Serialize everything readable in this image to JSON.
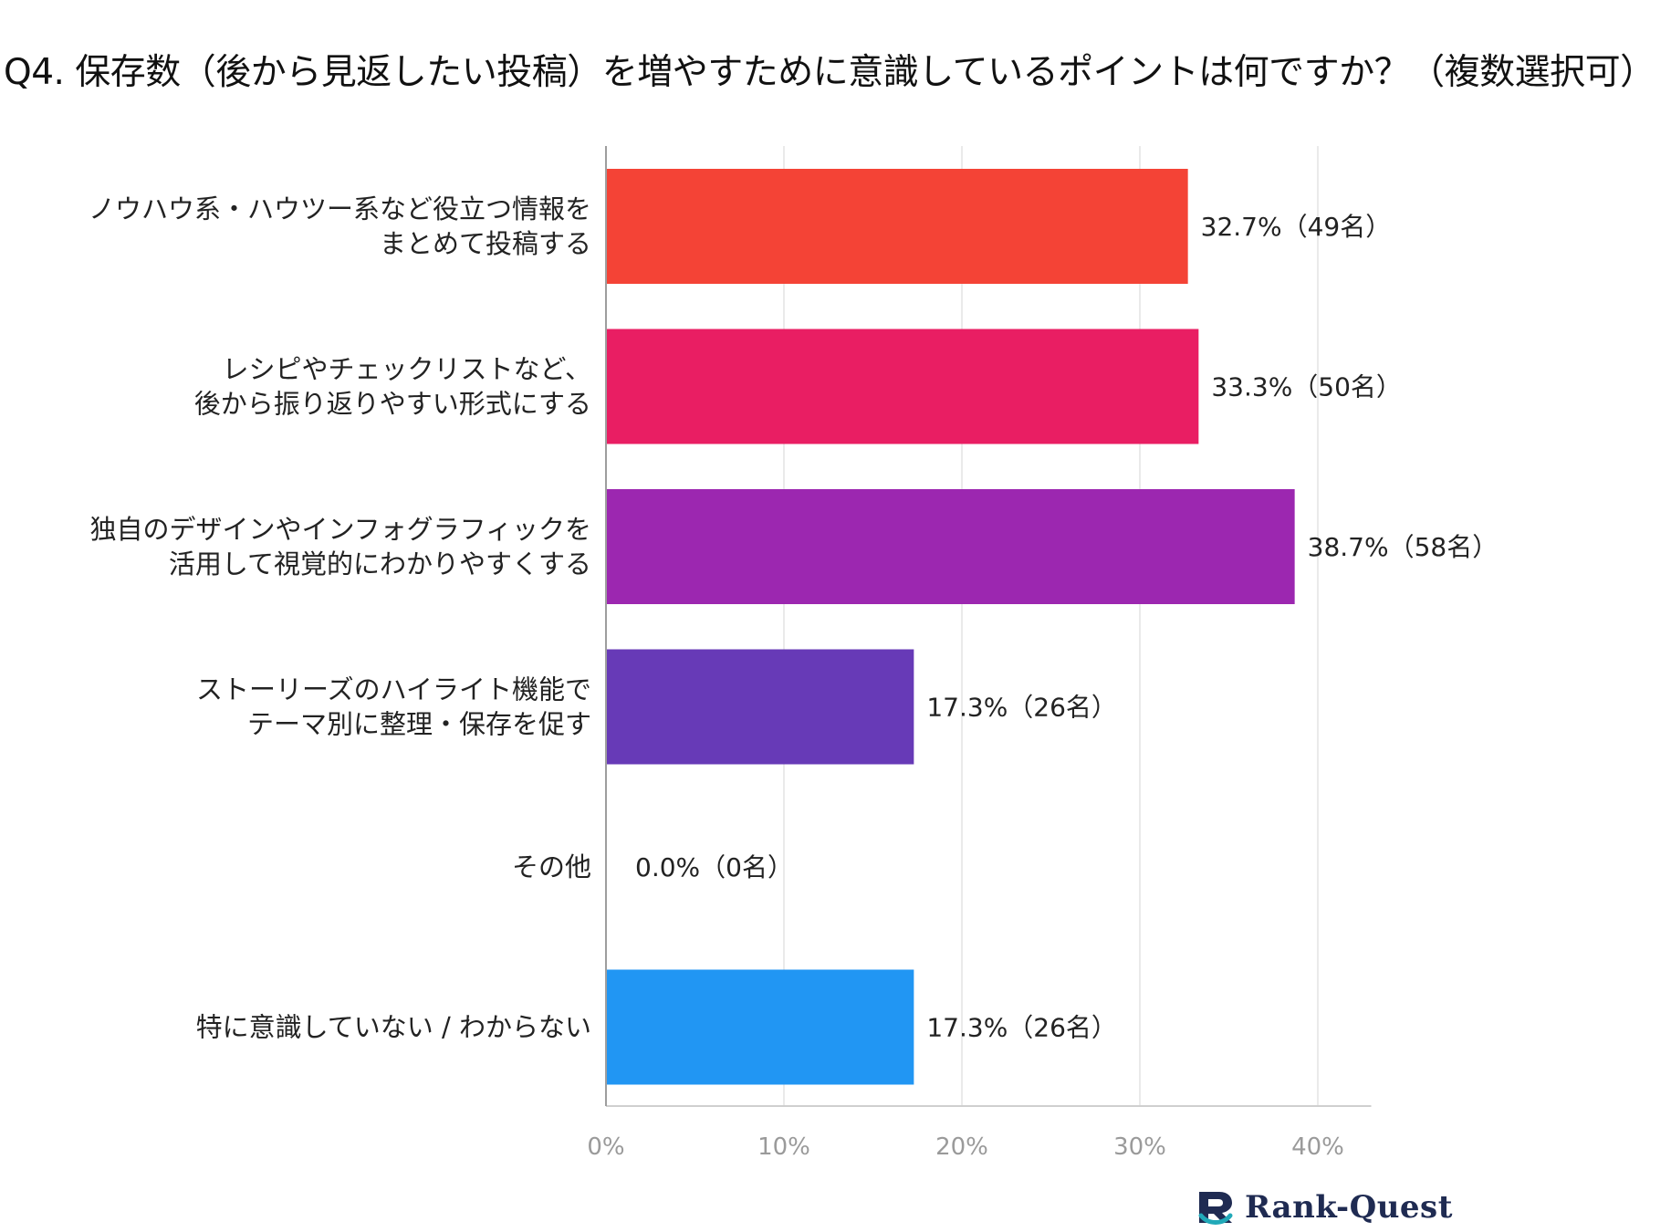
{
  "title": "Q4. 保存数（後から見返したい投稿）を増やすために意識しているポイントは何ですか？（複数選択可）",
  "chart_data": {
    "type": "bar",
    "orientation": "horizontal",
    "title": "Q4. 保存数（後から見返したい投稿）を増やすために意識しているポイントは何ですか？（複数選択可）",
    "categories": [
      [
        "ノウハウ系・ハウツー系など役立つ情報を",
        "まとめて投稿する"
      ],
      [
        "レシピやチェックリストなど、",
        "後から振り返りやすい形式にする"
      ],
      [
        "独自のデザインやインフォグラフィックを",
        "活用して視覚的にわかりやすくする"
      ],
      [
        "ストーリーズのハイライト機能で",
        "テーマ別に整理・保存を促す"
      ],
      [
        "その他"
      ],
      [
        "特に意識していない / わからない"
      ]
    ],
    "values": [
      32.7,
      33.3,
      38.7,
      17.3,
      0.0,
      17.3
    ],
    "data_labels": [
      "32.7%（49名）",
      "33.3%（50名）",
      "38.7%（58名）",
      "17.3%（26名）",
      "0.0%（0名）",
      "17.3%（26名）"
    ],
    "colors": [
      "#f44336",
      "#e91e63",
      "#9c27b0",
      "#673ab7",
      "#9e9e9e",
      "#2196f3"
    ],
    "xlim": [
      0,
      43
    ],
    "xticks": [
      0,
      10,
      20,
      30,
      40
    ],
    "xtick_labels": [
      "0%",
      "10%",
      "20%",
      "30%",
      "40%"
    ],
    "xlabel": "",
    "ylabel": "",
    "grid": true
  },
  "brand": {
    "name": "Rank-Quest",
    "logo_letter": "R"
  }
}
